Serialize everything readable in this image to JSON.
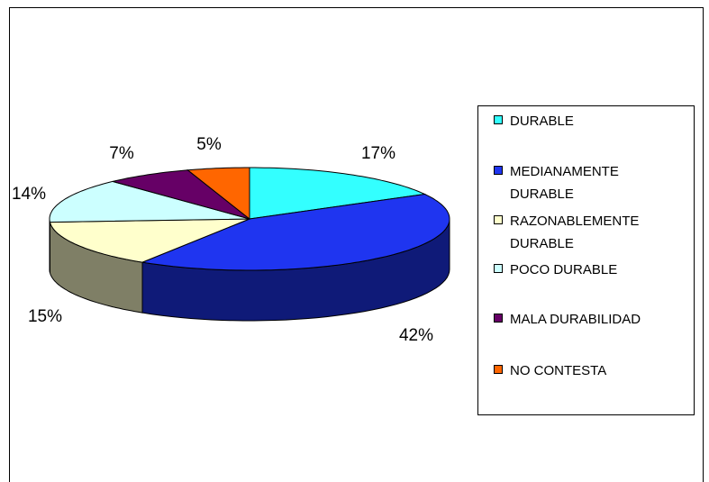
{
  "chart_data": {
    "type": "pie",
    "categories": [
      "DURABLE",
      "MEDIANAMENTE DURABLE",
      "RAZONABLEMENTE DURABLE",
      "POCO DURABLE",
      "MALA DURABILIDAD",
      "NO CONTESTA"
    ],
    "values": [
      17,
      42,
      15,
      14,
      7,
      5
    ],
    "value_labels": [
      "17%",
      "42%",
      "15%",
      "14%",
      "7%",
      "5%"
    ],
    "colors": [
      "#33ffff",
      "#1f35f0",
      "#ffffcc",
      "#ccffff",
      "#660066",
      "#ff6600"
    ],
    "legend": "right"
  }
}
